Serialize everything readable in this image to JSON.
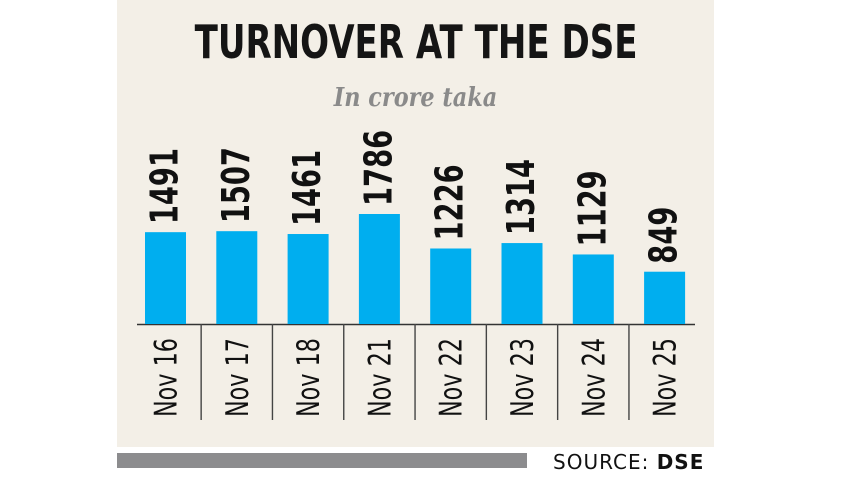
{
  "chart_data": {
    "type": "bar",
    "title": "TURNOVER AT THE DSE",
    "subtitle": "In crore taka",
    "categories": [
      "Nov 16",
      "Nov 17",
      "Nov 18",
      "Nov 21",
      "Nov 22",
      "Nov 23",
      "Nov 24",
      "Nov 25"
    ],
    "values": [
      1491,
      1507,
      1461,
      1786,
      1226,
      1314,
      1129,
      849
    ],
    "value_labels": [
      "1491",
      "1507",
      "1461",
      "1786",
      "1226",
      "1314",
      "1129",
      "849"
    ],
    "ylim": [
      0,
      1786
    ],
    "grid": false,
    "legend": "none",
    "bar_color": "#00aeef"
  },
  "source": {
    "label": "SOURCE:",
    "name": "DSE"
  },
  "colors": {
    "background": "#f3efe7",
    "footer_bar": "#8c8c8e",
    "subtitle": "#8a8a8a"
  }
}
